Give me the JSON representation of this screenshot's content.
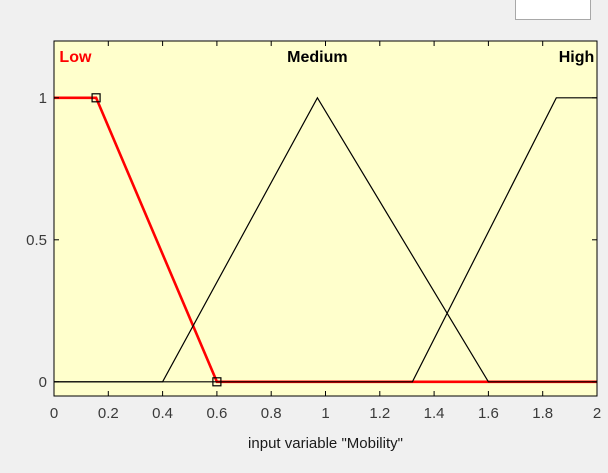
{
  "colors": {
    "plot_bg": "#ffffcc",
    "selected": "#ff0000",
    "unselected": "#000000",
    "frame": "#000000"
  },
  "chart_data": {
    "type": "line",
    "title": "",
    "xlabel": "input variable \"Mobility\"",
    "ylabel": "",
    "xlim": [
      0,
      2
    ],
    "ylim": [
      -0.05,
      1.2
    ],
    "x_ticks": [
      0,
      0.2,
      0.4,
      0.6,
      0.8,
      1,
      1.2,
      1.4,
      1.6,
      1.8,
      2
    ],
    "x_tick_labels": [
      "0",
      "0.2",
      "0.4",
      "0.6",
      "0.8",
      "1",
      "1.2",
      "1.4",
      "1.6",
      "1.8",
      "2"
    ],
    "y_ticks": [
      0,
      0.5,
      1
    ],
    "y_tick_labels": [
      "0",
      "0.5",
      "1"
    ],
    "grid": false,
    "selected_series": "Low",
    "series": [
      {
        "name": "Low",
        "label_x": 0.02,
        "label_align": "start",
        "x": [
          0,
          0.155,
          0.6,
          2
        ],
        "y": [
          1,
          1,
          0,
          0
        ],
        "handles_x": [
          0.155,
          0.6
        ],
        "handles_y": [
          1,
          0
        ]
      },
      {
        "name": "Medium",
        "label_x": 0.97,
        "label_align": "middle",
        "x": [
          0,
          0.4,
          0.97,
          1.6,
          2
        ],
        "y": [
          0,
          0,
          1,
          0,
          0
        ]
      },
      {
        "name": "High",
        "label_x": 1.99,
        "label_align": "end",
        "x": [
          0,
          1.32,
          1.85,
          2
        ],
        "y": [
          0,
          0,
          1,
          1
        ]
      }
    ]
  }
}
